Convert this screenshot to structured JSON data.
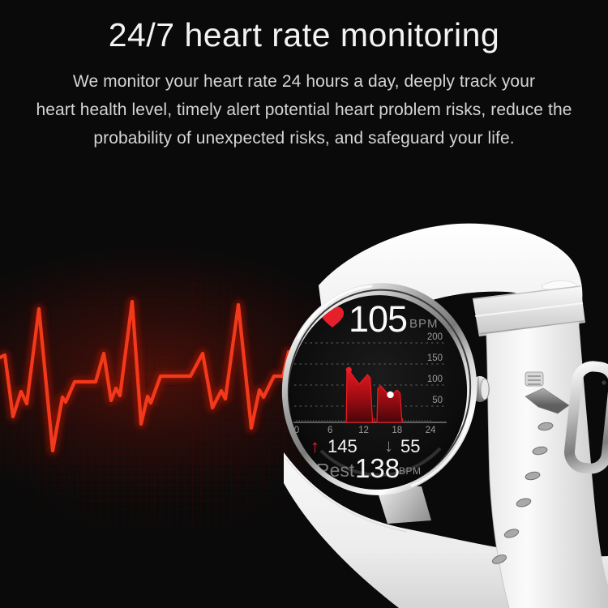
{
  "hero": {
    "title": "24/7 heart rate monitoring",
    "description_lines": [
      "We monitor your heart rate 24 hours a day, deeply track your",
      "heart health level, timely alert potential heart problem risks, reduce the",
      "probability of unexpected risks, and safeguard your life."
    ]
  },
  "watch_screen": {
    "current_bpm": "105",
    "current_unit": "BPM",
    "up_arrow": "↑",
    "max_bpm": "145",
    "down_arrow": "↓",
    "min_bpm": "55",
    "rest_label": "Rest",
    "rest_bpm": "138",
    "rest_unit": "BPM"
  },
  "icons": {
    "heart": "heart-icon",
    "up_arrow": "arrow-up-icon",
    "down_arrow": "arrow-down-icon"
  },
  "colors": {
    "background": "#0a0a0a",
    "title_text": "#f3f3f3",
    "body_text": "#d5d5d5",
    "ecg_red": "#f2391b",
    "heart_red": "#e6202b",
    "chart_area_red": "#e3171f",
    "chart_marker_white": "#ffffff",
    "screen_label_gray": "#9b9b9b",
    "band_white": "#efefef",
    "metal_silver": "#c9c9c9"
  },
  "chart_data": {
    "type": "area",
    "x_ticks": [
      "0",
      "6",
      "12",
      "18",
      "24"
    ],
    "y_ticks": [
      "200",
      "150",
      "100",
      "50"
    ],
    "xlim": [
      0,
      24
    ],
    "ylim": [
      0,
      200
    ],
    "x_unit": "hour",
    "y_unit": "BPM",
    "grid": "dashed-horizontal",
    "legend": "none",
    "series": [
      {
        "name": "segment-1",
        "points": [
          {
            "x": 8.9,
            "bpm": 0
          },
          {
            "x": 9.0,
            "bpm": 131
          },
          {
            "x": 9.35,
            "bpm": 136
          },
          {
            "x": 11.2,
            "bpm": 102
          },
          {
            "x": 12.7,
            "bpm": 125
          },
          {
            "x": 13.2,
            "bpm": 117
          },
          {
            "x": 13.6,
            "bpm": 0
          }
        ]
      },
      {
        "name": "segment-2",
        "points": [
          {
            "x": 14.4,
            "bpm": 0
          },
          {
            "x": 14.55,
            "bpm": 92
          },
          {
            "x": 15.1,
            "bpm": 98
          },
          {
            "x": 16.7,
            "bpm": 73
          },
          {
            "x": 18.0,
            "bpm": 88
          },
          {
            "x": 18.55,
            "bpm": 81
          },
          {
            "x": 18.9,
            "bpm": 0
          }
        ]
      }
    ],
    "markers": [
      {
        "x": 9.35,
        "bpm": 136,
        "color": "#e81f2a"
      },
      {
        "x": 16.8,
        "bpm": 77,
        "color": "#ffffff"
      }
    ],
    "active_tick_range": [
      9,
      19
    ],
    "stats": {
      "current": 105,
      "max": 145,
      "min": 55,
      "rest": 138
    }
  }
}
